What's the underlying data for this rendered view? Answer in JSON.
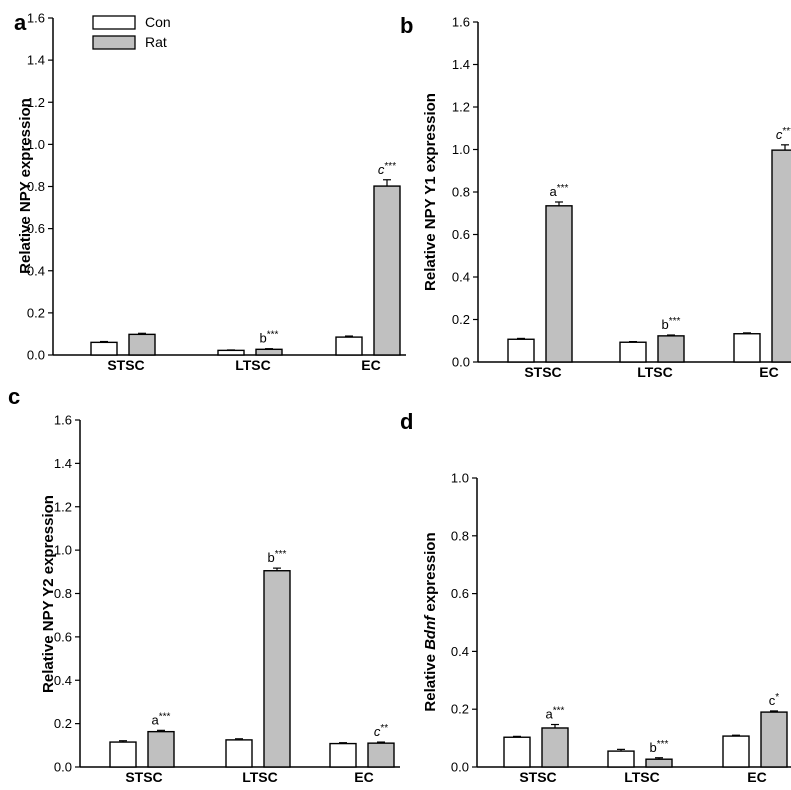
{
  "chart_data": [
    {
      "type": "bar",
      "panel_label": "a",
      "categories": [
        "STSC",
        "LTSC",
        "EC"
      ],
      "series": [
        {
          "name": "Con",
          "values": [
            0.06,
            0.022,
            0.085
          ],
          "errors": [
            0.004,
            0.002,
            0.005
          ]
        },
        {
          "name": "Rat",
          "values": [
            0.098,
            0.027,
            0.802
          ],
          "errors": [
            0.005,
            0.003,
            0.03
          ]
        }
      ],
      "annotations": [
        {
          "category": 1,
          "series": 1,
          "letter": "b",
          "letter_italic": false,
          "stars": "***"
        },
        {
          "category": 2,
          "series": 1,
          "letter": "c",
          "letter_italic": true,
          "stars": "***"
        }
      ],
      "ylabel": "Relative NPY expression",
      "ylabel_italic": "",
      "ylabel_suffix": "",
      "ylim": [
        0,
        1.6
      ],
      "yticks": [
        "0.0",
        "0.2",
        "0.4",
        "0.6",
        "0.8",
        "1.0",
        "1.2",
        "1.4",
        "1.6"
      ],
      "legend": true
    },
    {
      "type": "bar",
      "panel_label": "b",
      "categories": [
        "STSC",
        "LTSC",
        "EC"
      ],
      "series": [
        {
          "name": "Con",
          "values": [
            0.107,
            0.093,
            0.133
          ],
          "errors": [
            0.004,
            0.003,
            0.004
          ]
        },
        {
          "name": "Rat",
          "values": [
            0.735,
            0.123,
            0.997
          ],
          "errors": [
            0.018,
            0.004,
            0.025
          ]
        }
      ],
      "annotations": [
        {
          "category": 0,
          "series": 1,
          "letter": "a",
          "letter_italic": false,
          "stars": "***"
        },
        {
          "category": 1,
          "series": 1,
          "letter": "b",
          "letter_italic": false,
          "stars": "***"
        },
        {
          "category": 2,
          "series": 1,
          "letter": "c",
          "letter_italic": true,
          "stars": "***"
        }
      ],
      "ylabel": "Relative NPY Y1 expression",
      "ylabel_italic": "",
      "ylabel_suffix": "",
      "ylim": [
        0,
        1.6
      ],
      "yticks": [
        "0.0",
        "0.2",
        "0.4",
        "0.6",
        "0.8",
        "1.0",
        "1.2",
        "1.4",
        "1.6"
      ],
      "legend": false
    },
    {
      "type": "bar",
      "panel_label": "c",
      "categories": [
        "STSC",
        "LTSC",
        "EC"
      ],
      "series": [
        {
          "name": "Con",
          "values": [
            0.115,
            0.125,
            0.108
          ],
          "errors": [
            0.006,
            0.005,
            0.004
          ]
        },
        {
          "name": "Rat",
          "values": [
            0.163,
            0.905,
            0.11
          ],
          "errors": [
            0.006,
            0.012,
            0.005
          ]
        }
      ],
      "annotations": [
        {
          "category": 0,
          "series": 1,
          "letter": "a",
          "letter_italic": false,
          "stars": "***"
        },
        {
          "category": 1,
          "series": 1,
          "letter": "b",
          "letter_italic": false,
          "stars": "***"
        },
        {
          "category": 2,
          "series": 1,
          "letter": "c",
          "letter_italic": true,
          "stars": "**"
        }
      ],
      "ylabel": "Relative NPY Y2 expression",
      "ylabel_italic": "",
      "ylabel_suffix": "",
      "ylim": [
        0,
        1.6
      ],
      "yticks": [
        "0.0",
        "0.2",
        "0.4",
        "0.6",
        "0.8",
        "1.0",
        "1.2",
        "1.4",
        "1.6"
      ],
      "legend": false
    },
    {
      "type": "bar",
      "panel_label": "d",
      "categories": [
        "STSC",
        "LTSC",
        "EC"
      ],
      "series": [
        {
          "name": "Con",
          "values": [
            0.103,
            0.055,
            0.107
          ],
          "errors": [
            0.003,
            0.006,
            0.003
          ]
        },
        {
          "name": "Rat",
          "values": [
            0.135,
            0.027,
            0.19
          ],
          "errors": [
            0.012,
            0.005,
            0.004
          ]
        }
      ],
      "annotations": [
        {
          "category": 0,
          "series": 1,
          "letter": "a",
          "letter_italic": false,
          "stars": "***"
        },
        {
          "category": 1,
          "series": 1,
          "letter": "b",
          "letter_italic": false,
          "stars": "***"
        },
        {
          "category": 2,
          "series": 1,
          "letter": "c",
          "letter_italic": false,
          "stars": "*"
        }
      ],
      "ylabel": "Relative ",
      "ylabel_italic": "Bdnf",
      "ylabel_suffix": " expression",
      "ylim": [
        0,
        1.0
      ],
      "yticks": [
        "0.0",
        "0.2",
        "0.4",
        "0.6",
        "0.8",
        "1.0"
      ],
      "legend": false
    }
  ],
  "colors": {
    "con_fill": "#ffffff",
    "rat_fill": "#c0c0c0",
    "stroke": "#000000"
  }
}
